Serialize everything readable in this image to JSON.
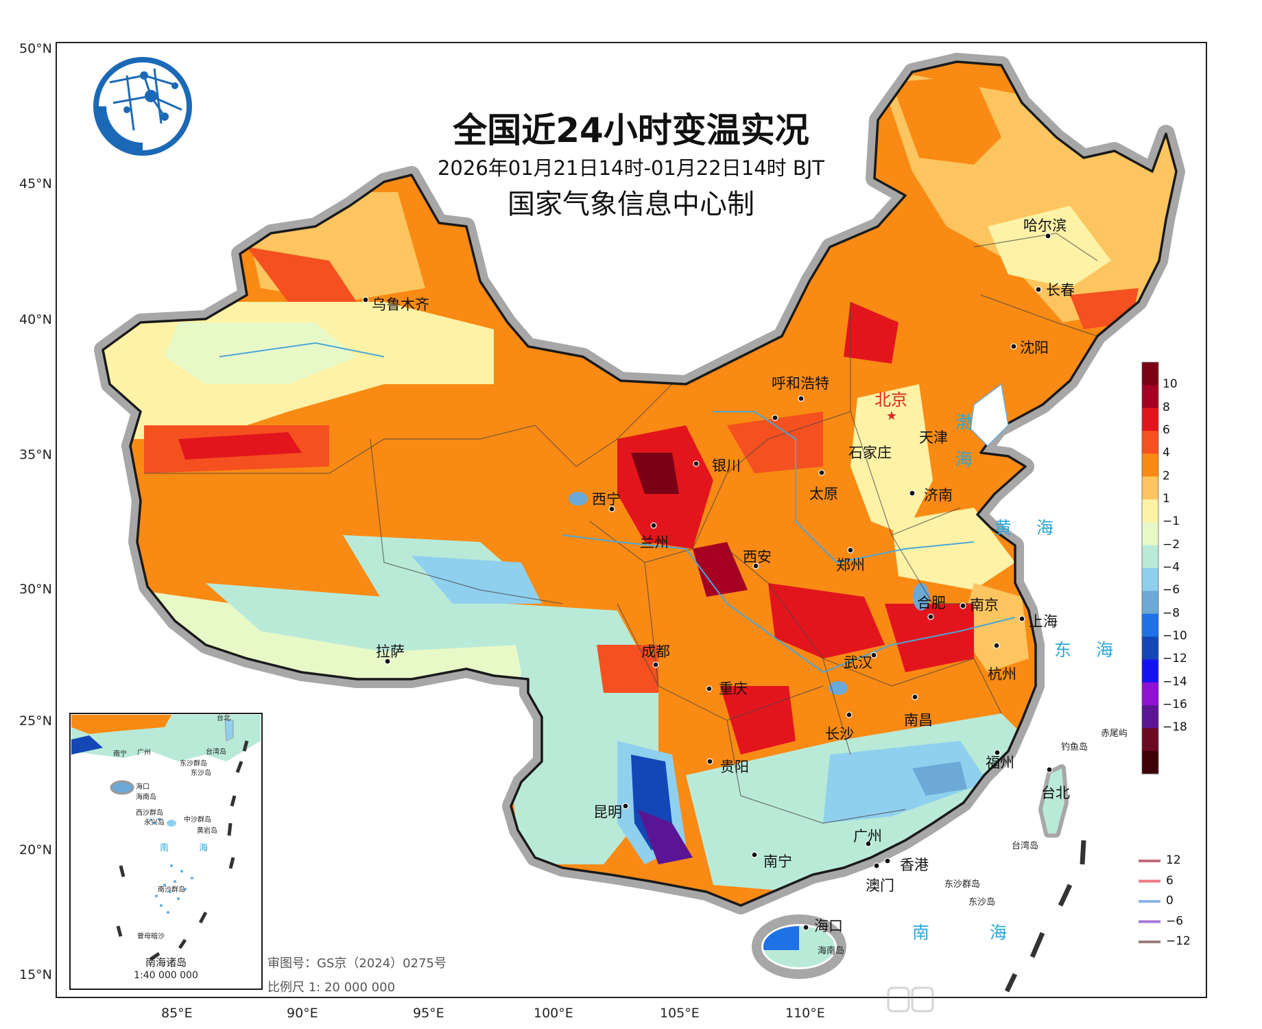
{
  "title": {
    "main": "全国近24小时变温实况",
    "period": "2026年01月21日14时-01月22日14时 BJT",
    "producer": "国家气象信息中心制"
  },
  "axes": {
    "lat_labels": [
      "50°N",
      "45°N",
      "40°N",
      "35°N",
      "30°N",
      "25°N",
      "20°N",
      "15°N"
    ],
    "lon_labels": [
      "85°E",
      "90°E",
      "95°E",
      "100°E",
      "105°E",
      "110°E"
    ]
  },
  "cities": {
    "urumqi": "乌鲁木齐",
    "harbin": "哈尔滨",
    "changchun": "长春",
    "shenyang": "沈阳",
    "hohhot": "呼和浩特",
    "beijing": "北京",
    "tianjin": "天津",
    "shijiazhuang": "石家庄",
    "yinchuan": "银川",
    "taiyuan": "太原",
    "jinan": "济南",
    "xining": "西宁",
    "lanzhou": "兰州",
    "xian": "西安",
    "zhengzhou": "郑州",
    "hefei": "合肥",
    "nanjing": "南京",
    "shanghai": "上海",
    "lhasa": "拉萨",
    "chengdu": "成都",
    "wuhan": "武汉",
    "hangzhou": "杭州",
    "chongqing": "重庆",
    "changsha": "长沙",
    "nanchang": "南昌",
    "guiyang": "贵阳",
    "fuzhou": "福州",
    "kunming": "昆明",
    "taipei": "台北",
    "guangzhou": "广州",
    "nanning": "南宁",
    "hongkong": "香港",
    "macau": "澳门",
    "haikou": "海口"
  },
  "seas": {
    "bohai_1": "渤",
    "bohai_2": "海",
    "yellow_sea": "黄 海",
    "east_sea": "东 海",
    "south_sea": "南 海"
  },
  "islands": {
    "chiwei": "赤尾屿",
    "diaoyu": "钓鱼岛",
    "taiwan_island": "台湾岛",
    "dongsha_group": "东沙群岛",
    "dongsha": "东沙岛",
    "hainan": "海南岛"
  },
  "inset": {
    "title": "南海诸岛",
    "scale": "1:40 000 000",
    "labels": {
      "nanning": "南宁",
      "guangzhou": "广州",
      "taipei": "台北",
      "taiwan_island": "台湾岛",
      "dongsha_group": "东沙群岛",
      "dongsha": "东沙岛",
      "haikou": "海口",
      "hainan": "海南岛",
      "xisha_group": "西沙群岛",
      "yongxing": "永兴岛",
      "zhongsha_group": "中沙群岛",
      "huangyan": "黄岩岛",
      "sea": "南 海",
      "nansha_group": "南沙群岛",
      "zengmu": "曾母暗沙"
    }
  },
  "footer": {
    "review_no": "审图号：GS京（2024）0275号",
    "scale": "比例尺 1: 20 000 000"
  },
  "legend": {
    "labels": [
      "10",
      "8",
      "6",
      "4",
      "2",
      "1",
      "−1",
      "−2",
      "−4",
      "−6",
      "−8",
      "−10",
      "−12",
      "−14",
      "−16",
      "−18"
    ],
    "colors": [
      "#7a0016",
      "#a50022",
      "#e3151c",
      "#f5501f",
      "#f98a14",
      "#fcc55f",
      "#fdf2a6",
      "#e8f9c8",
      "#b9ead8",
      "#8fd0ee",
      "#6ca9d6",
      "#1e72e6",
      "#1447b6",
      "#1413f0",
      "#8f11d4",
      "#5a1595",
      "#6b0a20",
      "#3d0208"
    ]
  },
  "isoline_legend": {
    "values": [
      "12",
      "6",
      "0",
      "−6",
      "−12"
    ],
    "colors": [
      "#c06a7c",
      "#ee7a80",
      "#8ab4ea",
      "#a87ad8",
      "#9a8080"
    ]
  }
}
